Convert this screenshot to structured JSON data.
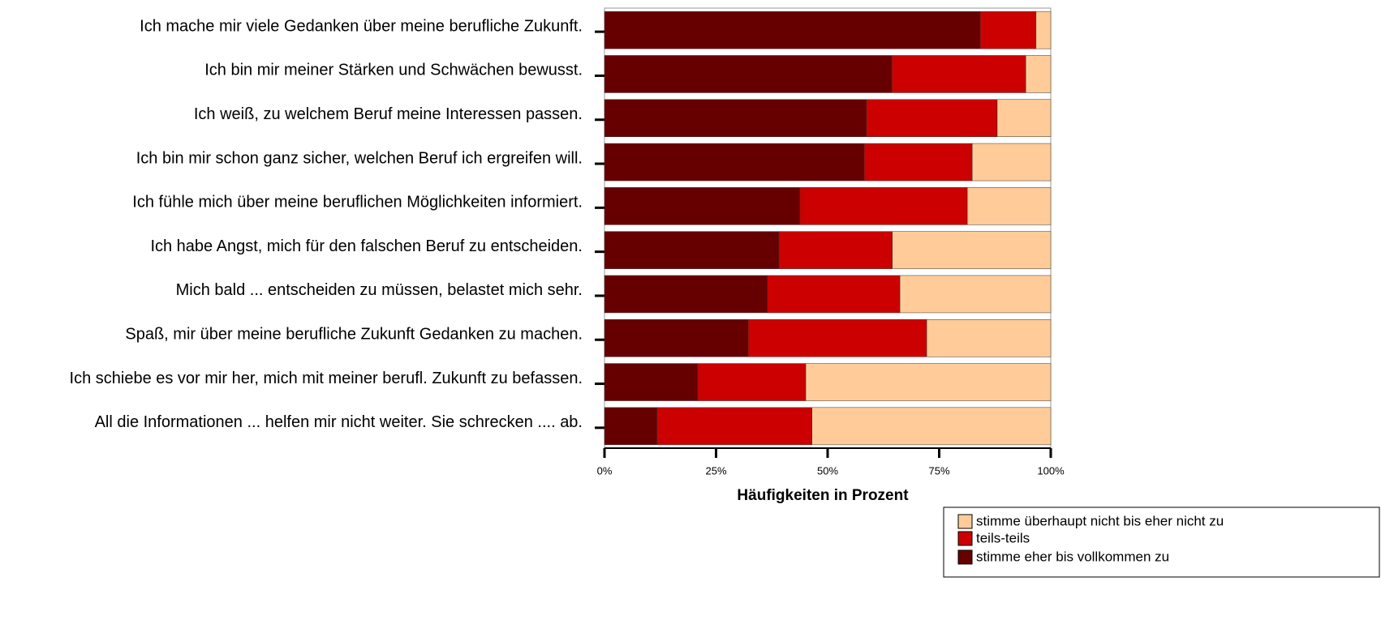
{
  "chart_data": {
    "type": "stacked_barh",
    "x_label": "Häufigkeiten in Prozent",
    "categories": [
      "Ich mache mir viele Gedanken über meine berufliche Zukunft.",
      "Ich bin mir meiner Stärken und Schwächen bewusst.",
      "Ich weiß, zu welchem Beruf meine Interessen passen.",
      "Ich bin mir schon ganz sicher, welchen Beruf ich ergreifen will.",
      "Ich fühle mich über meine beruflichen Möglichkeiten informiert.",
      "Ich habe Angst, mich für den falschen Beruf zu entscheiden.",
      "Mich bald ... entscheiden zu müssen, belastet mich sehr.",
      "Spaß, mir über meine berufliche Zukunft Gedanken zu machen.",
      "Ich schiebe es vor mir her, mich mit meiner berufl. Zukunft zu befassen.",
      "All die Informationen ... helfen mir nicht weiter. Sie schrecken .... ab."
    ],
    "series": [
      {
        "name": "stimme eher bis vollkommen zu",
        "color": "#660000",
        "values": [
          84.2,
          64.4,
          58.7,
          58.2,
          43.8,
          39.1,
          36.5,
          32.2,
          20.9,
          11.8
        ]
      },
      {
        "name": "teils-teils",
        "color": "#cc0000",
        "values": [
          12.5,
          30.0,
          29.3,
          24.2,
          37.5,
          25.4,
          29.7,
          40.0,
          24.2,
          34.7
        ]
      },
      {
        "name": "stimme überhaupt nicht bis eher nicht zu",
        "color": "#ffcc99",
        "values": [
          3.3,
          5.6,
          12.0,
          17.6,
          18.7,
          35.5,
          33.8,
          27.8,
          54.9,
          53.5
        ]
      }
    ],
    "xlim": [
      0,
      100
    ],
    "xticks": [
      {
        "value": 0,
        "label": "0%"
      },
      {
        "value": 25,
        "label": "25%"
      },
      {
        "value": 50,
        "label": "50%"
      },
      {
        "value": 75,
        "label": "75%"
      },
      {
        "value": 100,
        "label": "100%"
      }
    ]
  }
}
